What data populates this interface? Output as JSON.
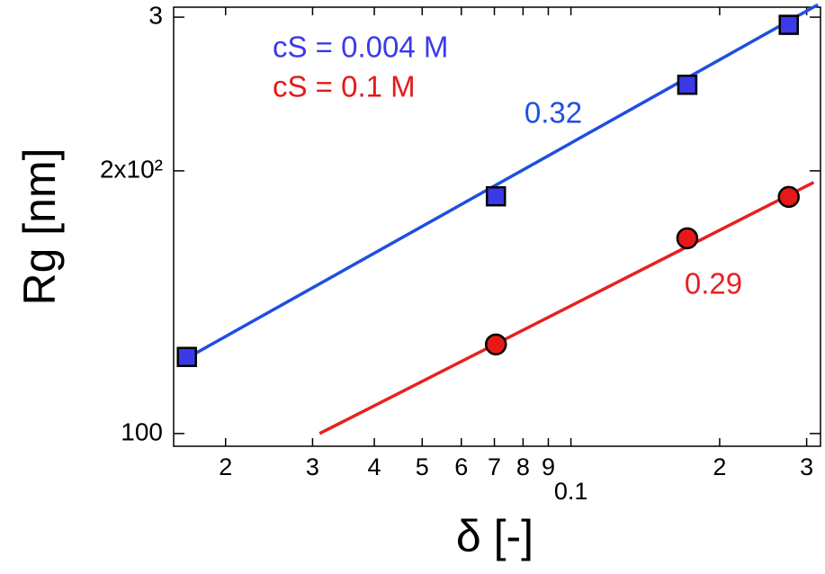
{
  "chart_data": {
    "type": "scatter",
    "xlabel": "δ [-]",
    "ylabel": "Rg [nm]",
    "xscale": "log",
    "yscale": "log",
    "xlim": [
      0.0157,
      0.32
    ],
    "ylim": [
      96.7,
      308
    ],
    "xticks": [
      {
        "value": 0.02,
        "label": "2"
      },
      {
        "value": 0.03,
        "label": "3"
      },
      {
        "value": 0.04,
        "label": "4"
      },
      {
        "value": 0.05,
        "label": "5"
      },
      {
        "value": 0.06,
        "label": "6"
      },
      {
        "value": 0.07,
        "label": "7"
      },
      {
        "value": 0.08,
        "label": "8"
      },
      {
        "value": 0.09,
        "label": "9"
      },
      0.1,
      {
        "value": 0.2,
        "label": "2"
      },
      {
        "value": 0.3,
        "label": "3"
      }
    ],
    "yticks": [
      100,
      {
        "value": 200,
        "label": "2x10²"
      },
      {
        "value": 300,
        "label": "3"
      }
    ],
    "legend": "upper left",
    "series": [
      {
        "name": "cS = 0.004 M",
        "color": "#3a3ae8",
        "marker": "square",
        "x": [
          0.0167,
          0.0705,
          0.172,
          0.276
        ],
        "values": [
          122.4,
          187,
          251,
          294
        ]
      },
      {
        "name": "cS = 0.1 M",
        "color": "#e81818",
        "marker": "circle",
        "x": [
          0.0705,
          0.172,
          0.276
        ],
        "values": [
          126.5,
          167.4,
          186.7
        ]
      }
    ],
    "fit_lines": [
      {
        "label": "0.32",
        "color": "#1f4fe0",
        "x": [
          0.0167,
          0.316
        ],
        "values": [
          122,
          310
        ]
      },
      {
        "label": "0.29",
        "color": "#e82020",
        "x": [
          0.031,
          0.31
        ],
        "values": [
          100,
          194
        ]
      }
    ]
  }
}
